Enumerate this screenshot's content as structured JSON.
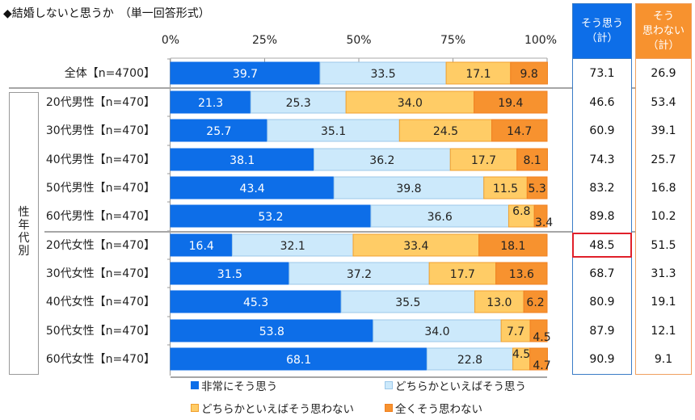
{
  "title": "◆結婚しないと思うか　（単一回答形式）",
  "group_label": "性年代別",
  "summary_headers": {
    "agree_total": "そう思う（計）",
    "agree_total_lines": [
      "そう思う",
      "（計）"
    ],
    "disagree_total_lines": [
      "そう",
      "思わない",
      "（計）"
    ]
  },
  "colors": {
    "strongly_agree": "#0d6ee8",
    "somewhat_agree": "#cce9fb",
    "somewhat_disagree": "#ffcc66",
    "strongly_disagree": "#f7922f",
    "agree_header": "#0d6ee8",
    "disagree_header": "#f7922f",
    "agree_border": "#3a7cc7",
    "disagree_border": "#f0a060",
    "highlight": "#e0202a"
  },
  "highlight": {
    "row": 6,
    "column": "agree_total"
  },
  "chart_data": {
    "type": "bar",
    "orientation": "horizontal-stacked-100",
    "title": "◆結婚しないと思うか　（単一回答形式）",
    "xlabel": "",
    "ylabel": "",
    "xlim": [
      0,
      100
    ],
    "x_ticks": [
      "0%",
      "25%",
      "50%",
      "75%",
      "100%"
    ],
    "legend_position": "bottom",
    "categories": [
      "全体【n=4700】",
      "20代男性【n=470】",
      "30代男性【n=470】",
      "40代男性【n=470】",
      "50代男性【n=470】",
      "60代男性【n=470】",
      "20代女性【n=470】",
      "30代女性【n=470】",
      "40代女性【n=470】",
      "50代女性【n=470】",
      "60代女性【n=470】"
    ],
    "series": [
      {
        "name": "非常にそう思う",
        "values": [
          39.7,
          21.3,
          25.7,
          38.1,
          43.4,
          53.2,
          16.4,
          31.5,
          45.3,
          53.8,
          68.1
        ]
      },
      {
        "name": "どちらかといえばそう思う",
        "values": [
          33.5,
          25.3,
          35.1,
          36.2,
          39.8,
          36.6,
          32.1,
          37.2,
          35.5,
          34.0,
          22.8
        ]
      },
      {
        "name": "どちらかといえばそう思わない",
        "values": [
          17.1,
          34.0,
          24.5,
          17.7,
          11.5,
          6.8,
          33.4,
          17.7,
          13.0,
          7.7,
          4.5
        ]
      },
      {
        "name": "全くそう思わない",
        "values": [
          9.8,
          19.4,
          14.7,
          8.1,
          5.3,
          3.4,
          18.1,
          13.6,
          6.2,
          4.5,
          4.7
        ]
      }
    ],
    "totals": {
      "agree": [
        73.1,
        46.6,
        60.9,
        74.3,
        83.2,
        89.8,
        48.5,
        68.7,
        80.9,
        87.9,
        90.9
      ],
      "disagree": [
        26.9,
        53.4,
        39.1,
        25.7,
        16.8,
        10.2,
        51.5,
        31.3,
        19.1,
        12.1,
        9.1
      ]
    }
  }
}
